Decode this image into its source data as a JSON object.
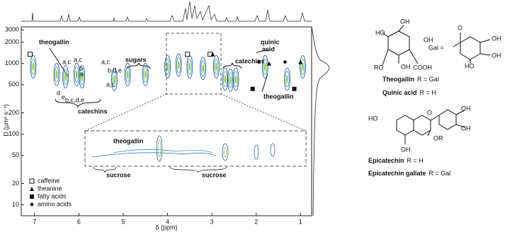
{
  "chart_data": {
    "type": "scatter",
    "xlabel": "δ (ppm)",
    "ylabel": "D (μm² s⁻¹)",
    "xlim": [
      7.3,
      0.75
    ],
    "ylim": [
      7,
      3300
    ],
    "log_y": true,
    "xticks": [
      7,
      6,
      5,
      4,
      3,
      2,
      1
    ],
    "yticks": [
      3000,
      2000,
      1000,
      500,
      200,
      100,
      50,
      20,
      10
    ],
    "peaks": {
      "color": "#2f5fb0",
      "x": [
        7.03,
        6.5,
        6.3,
        6.05,
        5.93,
        5.2,
        4.9,
        4.5,
        4.0,
        3.75,
        3.5,
        3.2,
        2.9,
        2.7,
        2.58,
        2.46,
        1.8,
        1.3,
        0.95
      ],
      "values": [
        900,
        700,
        650,
        700,
        650,
        600,
        700,
        700,
        900,
        950,
        900,
        850,
        900,
        600,
        580,
        600,
        900,
        600,
        900
      ]
    },
    "markers": [
      {
        "name": "caffeine",
        "marker": "open-square",
        "x": [
          7.1,
          3.55,
          3.04
        ],
        "values": [
          1350,
          1350,
          1350
        ]
      },
      {
        "name": "theanine",
        "marker": "triangle",
        "x": [
          2.98,
          1.71,
          1.0
        ],
        "values": [
          1350,
          1000,
          1050
        ]
      },
      {
        "name": "fatty acids",
        "marker": "filled-square",
        "x": [
          2.08,
          1.14
        ],
        "values": [
          437,
          437
        ]
      },
      {
        "name": "amino acids",
        "marker": "diamond",
        "x": [
          1.94,
          1.35
        ],
        "values": [
          1050,
          1050
        ]
      }
    ],
    "annotations": [
      "theogallin",
      "a,c",
      "a,c",
      "b",
      "a",
      "a,c",
      "b,d,e",
      "d",
      "e",
      "b,c,d,e",
      "a,c",
      "sugars",
      "catechins",
      "catechins",
      "quinic",
      "acid",
      "theogallin",
      "theogallin",
      "sucrose",
      "sucrose"
    ]
  },
  "structures": {
    "theogallin_atoms": [
      "HO",
      "OH",
      "OH",
      "RO",
      "COOH",
      "OH"
    ],
    "gal_atoms": [
      "O",
      "Gal =",
      "OH",
      "OH",
      "HO"
    ],
    "theogallin_caption": [
      "Theogallin",
      "R = Gal"
    ],
    "quinic_caption": [
      "Quinic acid",
      "R = H"
    ],
    "epicatechin_atoms": [
      "HO",
      "O",
      "OH",
      "OH",
      "OR",
      "OH"
    ],
    "epicatechin_caption": [
      "Epicatechin",
      "R = H"
    ],
    "ecg_caption": [
      "Epicatechin gallate",
      "R = Gal"
    ]
  }
}
